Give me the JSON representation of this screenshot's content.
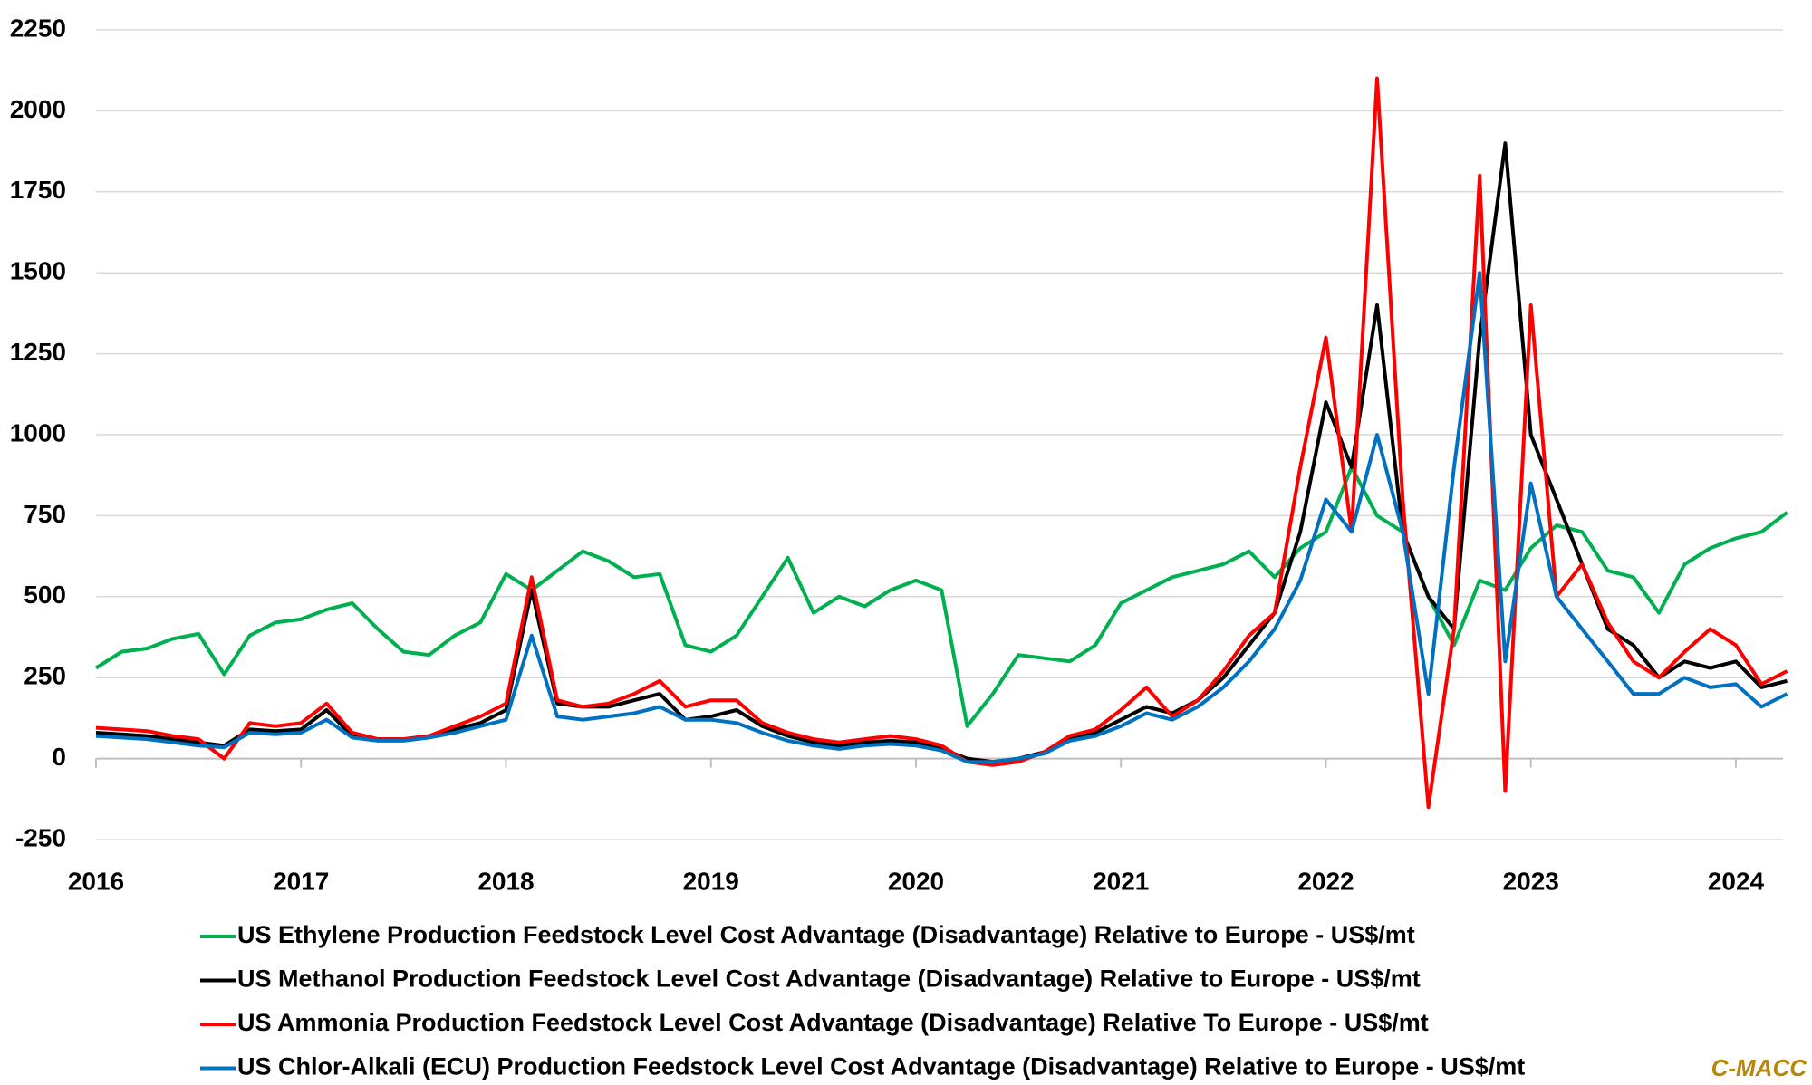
{
  "chart_data": {
    "type": "line",
    "x": [
      2016,
      2016.125,
      2016.25,
      2016.375,
      2016.5,
      2016.625,
      2016.75,
      2016.875,
      2017,
      2017.125,
      2017.25,
      2017.375,
      2017.5,
      2017.625,
      2017.75,
      2017.875,
      2018,
      2018.125,
      2018.25,
      2018.375,
      2018.5,
      2018.625,
      2018.75,
      2018.875,
      2019,
      2019.125,
      2019.25,
      2019.375,
      2019.5,
      2019.625,
      2019.75,
      2019.875,
      2020,
      2020.125,
      2020.25,
      2020.375,
      2020.5,
      2020.625,
      2020.75,
      2020.875,
      2021,
      2021.125,
      2021.25,
      2021.375,
      2021.5,
      2021.625,
      2021.75,
      2021.875,
      2022,
      2022.125,
      2022.25,
      2022.375,
      2022.5,
      2022.625,
      2022.75,
      2022.875,
      2023,
      2023.125,
      2023.25,
      2023.375,
      2023.5,
      2023.625,
      2023.75,
      2023.875,
      2024,
      2024.125,
      2024.25
    ],
    "xlim": [
      2016,
      2024.23
    ],
    "xticks": [
      2016,
      2017,
      2018,
      2019,
      2020,
      2021,
      2022,
      2023,
      2024
    ],
    "ylim": [
      -250,
      2250
    ],
    "yticks": [
      -250,
      0,
      250,
      500,
      750,
      1000,
      1250,
      1500,
      1750,
      2000,
      2250
    ],
    "grid": true,
    "series": [
      {
        "name": "US Ethylene Production Feedstock Level Cost Advantage (Disadvantage) Relative to Europe - US$/mt",
        "color": "#00b050",
        "values": [
          280,
          330,
          340,
          370,
          385,
          260,
          380,
          420,
          430,
          460,
          480,
          400,
          330,
          320,
          380,
          420,
          570,
          520,
          580,
          640,
          610,
          560,
          570,
          350,
          330,
          380,
          500,
          620,
          450,
          500,
          470,
          520,
          550,
          520,
          100,
          200,
          320,
          310,
          300,
          350,
          480,
          520,
          560,
          580,
          600,
          640,
          560,
          650,
          700,
          900,
          750,
          700,
          500,
          350,
          550,
          520,
          650,
          720,
          700,
          580,
          560,
          450,
          600,
          650,
          680,
          700,
          760
        ]
      },
      {
        "name": "US Methanol Production Feedstock Level Cost Advantage (Disadvantage) Relative to Europe - US$/mt",
        "color": "#000000",
        "values": [
          80,
          75,
          70,
          60,
          50,
          40,
          90,
          85,
          90,
          150,
          70,
          60,
          60,
          70,
          90,
          110,
          150,
          520,
          170,
          160,
          160,
          180,
          200,
          120,
          130,
          150,
          100,
          70,
          50,
          40,
          50,
          55,
          50,
          30,
          0,
          -10,
          0,
          20,
          60,
          80,
          120,
          160,
          140,
          180,
          250,
          350,
          450,
          700,
          1100,
          900,
          1400,
          700,
          500,
          400,
          1300,
          1900,
          1000,
          800,
          600,
          400,
          350,
          250,
          300,
          280,
          300,
          220,
          240
        ]
      },
      {
        "name": "US Ammonia Production Feedstock Level Cost Advantage (Disadvantage) Relative To Europe - US$/mt",
        "color": "#ff0000",
        "values": [
          95,
          90,
          85,
          70,
          60,
          0,
          110,
          100,
          110,
          170,
          80,
          60,
          60,
          70,
          100,
          130,
          170,
          560,
          180,
          160,
          170,
          200,
          240,
          160,
          180,
          180,
          110,
          80,
          60,
          50,
          60,
          70,
          60,
          40,
          -10,
          -20,
          -10,
          20,
          70,
          90,
          150,
          220,
          130,
          180,
          270,
          380,
          450,
          900,
          1300,
          700,
          2100,
          800,
          -150,
          400,
          1800,
          -100,
          1400,
          500,
          600,
          420,
          300,
          250,
          330,
          400,
          350,
          230,
          270
        ]
      },
      {
        "name": "US Chlor-Alkali (ECU) Production Feedstock Level Cost Advantage (Disadvantage) Relative to Europe - US$/mt",
        "color": "#0070c0",
        "values": [
          70,
          65,
          60,
          50,
          40,
          35,
          80,
          75,
          80,
          120,
          65,
          55,
          55,
          65,
          80,
          100,
          120,
          380,
          130,
          120,
          130,
          140,
          160,
          120,
          120,
          110,
          80,
          55,
          40,
          30,
          40,
          45,
          40,
          25,
          -10,
          -10,
          0,
          15,
          55,
          70,
          100,
          140,
          120,
          160,
          220,
          300,
          400,
          550,
          800,
          700,
          1000,
          700,
          200,
          900,
          1500,
          300,
          850,
          500,
          400,
          300,
          200,
          200,
          250,
          220,
          230,
          160,
          200
        ]
      }
    ],
    "watermark": "C-MACC"
  }
}
